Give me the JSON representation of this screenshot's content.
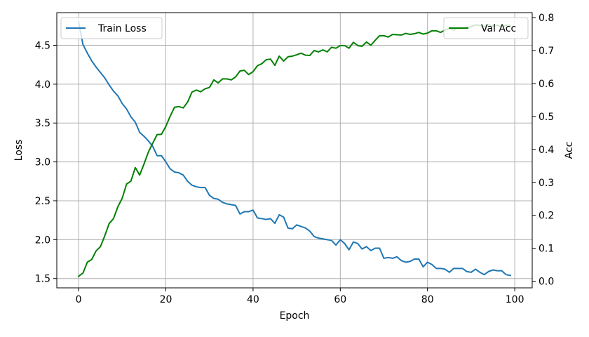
{
  "chart_data": {
    "type": "line",
    "title": "",
    "xlabel": "Epoch",
    "ylabel_left": "Loss",
    "ylabel_right": "Acc",
    "xlim": [
      -5,
      104
    ],
    "ylim_left": [
      1.38,
      4.92
    ],
    "ylim_right": [
      -0.02,
      0.815
    ],
    "x_ticks": [
      0,
      20,
      40,
      60,
      80,
      100
    ],
    "y_left_ticks": [
      1.5,
      2.0,
      2.5,
      3.0,
      3.5,
      4.0,
      4.5
    ],
    "y_right_ticks": [
      0.0,
      0.1,
      0.2,
      0.3,
      0.4,
      0.5,
      0.6,
      0.7,
      0.8
    ],
    "grid": true,
    "legend_left_placement": "upper-left",
    "legend_right_placement": "upper-right",
    "series": [
      {
        "name": "Train Loss",
        "axis": "left",
        "color": "#1f77b4",
        "x": [
          0,
          1,
          2,
          3,
          4,
          5,
          6,
          7,
          8,
          9,
          10,
          11,
          12,
          13,
          14,
          15,
          16,
          17,
          18,
          19,
          20,
          21,
          22,
          23,
          24,
          25,
          26,
          27,
          28,
          29,
          30,
          31,
          32,
          33,
          34,
          35,
          36,
          37,
          38,
          39,
          40,
          41,
          42,
          43,
          44,
          45,
          46,
          47,
          48,
          49,
          50,
          51,
          52,
          53,
          54,
          55,
          56,
          57,
          58,
          59,
          60,
          61,
          62,
          63,
          64,
          65,
          66,
          67,
          68,
          69,
          70,
          71,
          72,
          73,
          74,
          75,
          76,
          77,
          78,
          79,
          80,
          81,
          82,
          83,
          84,
          85,
          86,
          87,
          88,
          89,
          90,
          91,
          92,
          93,
          94,
          95,
          96,
          97,
          98,
          99
        ],
        "y": [
          4.8,
          4.51,
          4.4,
          4.3,
          4.22,
          4.15,
          4.08,
          3.99,
          3.91,
          3.85,
          3.75,
          3.68,
          3.58,
          3.51,
          3.38,
          3.33,
          3.27,
          3.2,
          3.08,
          3.08,
          3.0,
          2.91,
          2.87,
          2.86,
          2.83,
          2.75,
          2.7,
          2.68,
          2.67,
          2.67,
          2.57,
          2.53,
          2.52,
          2.48,
          2.46,
          2.45,
          2.44,
          2.33,
          2.36,
          2.36,
          2.38,
          2.28,
          2.27,
          2.26,
          2.27,
          2.21,
          2.32,
          2.29,
          2.15,
          2.14,
          2.19,
          2.17,
          2.15,
          2.11,
          2.04,
          2.02,
          2.01,
          2.0,
          1.99,
          1.93,
          2.0,
          1.95,
          1.87,
          1.97,
          1.95,
          1.88,
          1.91,
          1.86,
          1.89,
          1.89,
          1.76,
          1.77,
          1.76,
          1.78,
          1.73,
          1.71,
          1.72,
          1.75,
          1.75,
          1.65,
          1.71,
          1.68,
          1.63,
          1.63,
          1.62,
          1.58,
          1.63,
          1.63,
          1.63,
          1.59,
          1.58,
          1.62,
          1.58,
          1.55,
          1.59,
          1.61,
          1.6,
          1.6,
          1.55,
          1.54
        ]
      },
      {
        "name": "Val Acc",
        "axis": "right",
        "color": "#008000",
        "x": [
          0,
          1,
          2,
          3,
          4,
          5,
          6,
          7,
          8,
          9,
          10,
          11,
          12,
          13,
          14,
          15,
          16,
          17,
          18,
          19,
          20,
          21,
          22,
          23,
          24,
          25,
          26,
          27,
          28,
          29,
          30,
          31,
          32,
          33,
          34,
          35,
          36,
          37,
          38,
          39,
          40,
          41,
          42,
          43,
          44,
          45,
          46,
          47,
          48,
          49,
          50,
          51,
          52,
          53,
          54,
          55,
          56,
          57,
          58,
          59,
          60,
          61,
          62,
          63,
          64,
          65,
          66,
          67,
          68,
          69,
          70,
          71,
          72,
          73,
          74,
          75,
          76,
          77,
          78,
          79,
          80,
          81,
          82,
          83,
          84,
          85,
          86,
          87,
          88,
          89,
          90,
          91,
          92,
          93,
          94,
          95,
          96,
          97,
          98,
          99
        ],
        "y": [
          0.015,
          0.025,
          0.058,
          0.066,
          0.092,
          0.105,
          0.138,
          0.175,
          0.19,
          0.226,
          0.252,
          0.295,
          0.304,
          0.345,
          0.322,
          0.356,
          0.392,
          0.419,
          0.445,
          0.446,
          0.47,
          0.501,
          0.528,
          0.53,
          0.526,
          0.544,
          0.574,
          0.58,
          0.575,
          0.584,
          0.588,
          0.611,
          0.602,
          0.614,
          0.614,
          0.611,
          0.62,
          0.638,
          0.64,
          0.627,
          0.636,
          0.654,
          0.66,
          0.672,
          0.674,
          0.655,
          0.683,
          0.668,
          0.681,
          0.683,
          0.687,
          0.692,
          0.686,
          0.685,
          0.7,
          0.696,
          0.702,
          0.696,
          0.71,
          0.707,
          0.715,
          0.715,
          0.707,
          0.725,
          0.715,
          0.713,
          0.726,
          0.716,
          0.731,
          0.745,
          0.745,
          0.741,
          0.749,
          0.748,
          0.747,
          0.752,
          0.749,
          0.751,
          0.755,
          0.75,
          0.753,
          0.76,
          0.76,
          0.755,
          0.762,
          0.767,
          0.762,
          0.769,
          0.767,
          0.77,
          0.772,
          0.778,
          0.776,
          0.773,
          0.778,
          0.774,
          0.777,
          0.771,
          0.777,
          0.776
        ]
      }
    ]
  }
}
